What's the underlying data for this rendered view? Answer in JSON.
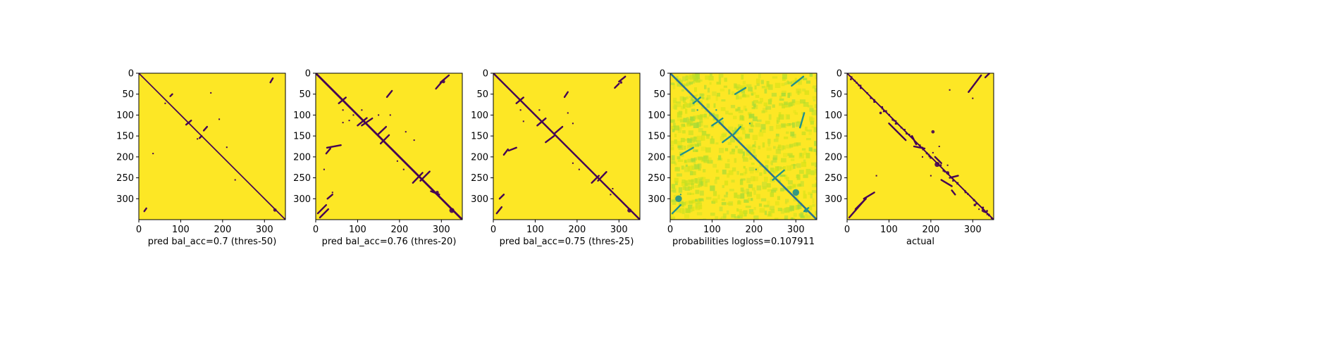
{
  "chart_data": [
    {
      "type": "heatmap",
      "title": "",
      "xlabel": "pred bal_acc=0.7 (thres-50)",
      "ylabel": "",
      "size": 350,
      "xlim": [
        0,
        350
      ],
      "ylim": [
        350,
        0
      ],
      "xticks": [
        0,
        100,
        200,
        300
      ],
      "yticks": [
        0,
        50,
        100,
        150,
        200,
        250,
        300
      ],
      "colormap": "binary",
      "background_color": "#fde725",
      "mark_color": "#440154",
      "diagonal": {
        "band": 1.4,
        "jitter": 0
      },
      "segments": [
        {
          "x1": 314,
          "y1": 22,
          "x2": 320,
          "y2": 12
        },
        {
          "x1": 75,
          "y1": 55,
          "x2": 80,
          "y2": 50
        },
        {
          "x1": 113,
          "y1": 123,
          "x2": 125,
          "y2": 113
        },
        {
          "x1": 155,
          "y1": 137,
          "x2": 163,
          "y2": 128
        },
        {
          "x1": 145,
          "y1": 155,
          "x2": 150,
          "y2": 150
        },
        {
          "x1": 13,
          "y1": 330,
          "x2": 18,
          "y2": 323
        }
      ],
      "dots": [
        [
          63,
          72
        ],
        [
          172,
          47
        ],
        [
          192,
          110
        ],
        [
          34,
          192
        ],
        [
          210,
          177
        ],
        [
          140,
          157
        ],
        [
          230,
          255
        ]
      ],
      "blobs": [
        {
          "x": 325,
          "y": 327,
          "r": 4
        }
      ]
    },
    {
      "type": "heatmap",
      "title": "",
      "xlabel": "pred bal_acc=0.76 (thres-20)",
      "ylabel": "",
      "size": 350,
      "xlim": [
        0,
        350
      ],
      "ylim": [
        350,
        0
      ],
      "xticks": [
        0,
        100,
        200,
        300
      ],
      "yticks": [
        0,
        50,
        100,
        150,
        200,
        250,
        300
      ],
      "colormap": "binary",
      "background_color": "#fde725",
      "mark_color": "#440154",
      "diagonal": {
        "band": 2.4,
        "jitter": 0
      },
      "segments": [
        {
          "x1": 55,
          "y1": 72,
          "x2": 72,
          "y2": 58
        },
        {
          "x1": 100,
          "y1": 125,
          "x2": 122,
          "y2": 107
        },
        {
          "x1": 110,
          "y1": 125,
          "x2": 135,
          "y2": 108
        },
        {
          "x1": 148,
          "y1": 147,
          "x2": 168,
          "y2": 128
        },
        {
          "x1": 155,
          "y1": 168,
          "x2": 175,
          "y2": 148
        },
        {
          "x1": 170,
          "y1": 57,
          "x2": 182,
          "y2": 42
        },
        {
          "x1": 287,
          "y1": 37,
          "x2": 300,
          "y2": 22
        },
        {
          "x1": 298,
          "y1": 22,
          "x2": 318,
          "y2": 5
        },
        {
          "x1": 250,
          "y1": 257,
          "x2": 272,
          "y2": 235
        },
        {
          "x1": 232,
          "y1": 262,
          "x2": 255,
          "y2": 238
        },
        {
          "x1": 275,
          "y1": 282,
          "x2": 295,
          "y2": 290
        },
        {
          "x1": 27,
          "y1": 178,
          "x2": 60,
          "y2": 172
        },
        {
          "x1": 25,
          "y1": 192,
          "x2": 35,
          "y2": 180
        },
        {
          "x1": 5,
          "y1": 335,
          "x2": 25,
          "y2": 315
        },
        {
          "x1": 10,
          "y1": 345,
          "x2": 30,
          "y2": 325
        },
        {
          "x1": 28,
          "y1": 300,
          "x2": 40,
          "y2": 290
        }
      ],
      "dots": [
        [
          65,
          88
        ],
        [
          90,
          100
        ],
        [
          150,
          100
        ],
        [
          110,
          88
        ],
        [
          80,
          113
        ],
        [
          65,
          118
        ],
        [
          178,
          100
        ],
        [
          20,
          230
        ],
        [
          215,
          140
        ],
        [
          235,
          160
        ],
        [
          210,
          230
        ],
        [
          195,
          210
        ],
        [
          40,
          285
        ]
      ],
      "blobs": [
        {
          "x": 325,
          "y": 328,
          "r": 6
        },
        {
          "x": 290,
          "y": 285,
          "r": 4
        },
        {
          "x": 305,
          "y": 20,
          "r": 4
        }
      ]
    },
    {
      "type": "heatmap",
      "title": "",
      "xlabel": "pred bal_acc=0.75 (thres-25)",
      "ylabel": "",
      "size": 350,
      "xlim": [
        0,
        350
      ],
      "ylim": [
        350,
        0
      ],
      "xticks": [
        0,
        100,
        200,
        300
      ],
      "yticks": [
        0,
        50,
        100,
        150,
        200,
        250,
        300
      ],
      "colormap": "binary",
      "background_color": "#fde725",
      "mark_color": "#440154",
      "diagonal": {
        "band": 2.0,
        "jitter": 0
      },
      "segments": [
        {
          "x1": 55,
          "y1": 72,
          "x2": 72,
          "y2": 58
        },
        {
          "x1": 105,
          "y1": 125,
          "x2": 125,
          "y2": 108
        },
        {
          "x1": 145,
          "y1": 145,
          "x2": 165,
          "y2": 128
        },
        {
          "x1": 125,
          "y1": 165,
          "x2": 145,
          "y2": 150
        },
        {
          "x1": 170,
          "y1": 57,
          "x2": 178,
          "y2": 45
        },
        {
          "x1": 290,
          "y1": 35,
          "x2": 300,
          "y2": 25
        },
        {
          "x1": 300,
          "y1": 20,
          "x2": 315,
          "y2": 8
        },
        {
          "x1": 250,
          "y1": 257,
          "x2": 270,
          "y2": 236
        },
        {
          "x1": 235,
          "y1": 262,
          "x2": 252,
          "y2": 245
        },
        {
          "x1": 25,
          "y1": 195,
          "x2": 35,
          "y2": 182
        },
        {
          "x1": 37,
          "y1": 185,
          "x2": 55,
          "y2": 178
        },
        {
          "x1": 8,
          "y1": 335,
          "x2": 20,
          "y2": 320
        },
        {
          "x1": 15,
          "y1": 300,
          "x2": 25,
          "y2": 290
        }
      ],
      "dots": [
        [
          65,
          88
        ],
        [
          110,
          88
        ],
        [
          190,
          120
        ],
        [
          72,
          115
        ],
        [
          178,
          95
        ],
        [
          205,
          230
        ],
        [
          190,
          215
        ],
        [
          25,
          290
        ],
        [
          285,
          276
        ],
        [
          280,
          290
        ]
      ],
      "blobs": [
        {
          "x": 325,
          "y": 328,
          "r": 5
        },
        {
          "x": 305,
          "y": 22,
          "r": 3
        }
      ]
    },
    {
      "type": "heatmap",
      "title": "",
      "xlabel": "probabilities logloss=0.107911",
      "ylabel": "",
      "size": 350,
      "xlim": [
        0,
        350
      ],
      "ylim": [
        350,
        0
      ],
      "xticks": [
        0,
        100,
        200,
        300
      ],
      "yticks": [
        0,
        50,
        100,
        150,
        200,
        250,
        300
      ],
      "colormap": "viridis",
      "background_color": "#fde725",
      "mark_color": "#21918c",
      "diagonal_color": "#2c728e",
      "diagonal": {
        "band": 2.2,
        "jitter": 0
      },
      "segments": [
        {
          "x1": 55,
          "y1": 72,
          "x2": 72,
          "y2": 58
        },
        {
          "x1": 100,
          "y1": 125,
          "x2": 125,
          "y2": 108
        },
        {
          "x1": 150,
          "y1": 148,
          "x2": 168,
          "y2": 128
        },
        {
          "x1": 125,
          "y1": 165,
          "x2": 145,
          "y2": 150
        },
        {
          "x1": 155,
          "y1": 50,
          "x2": 180,
          "y2": 35
        },
        {
          "x1": 290,
          "y1": 30,
          "x2": 318,
          "y2": 8
        },
        {
          "x1": 245,
          "y1": 255,
          "x2": 272,
          "y2": 232
        },
        {
          "x1": 25,
          "y1": 195,
          "x2": 55,
          "y2": 178
        },
        {
          "x1": 5,
          "y1": 335,
          "x2": 25,
          "y2": 315
        },
        {
          "x1": 310,
          "y1": 130,
          "x2": 320,
          "y2": 95
        },
        {
          "x1": 320,
          "y1": 330,
          "x2": 330,
          "y2": 322
        }
      ],
      "dots": [
        [
          65,
          88
        ],
        [
          110,
          88
        ],
        [
          190,
          120
        ],
        [
          205,
          230
        ],
        [
          25,
          290
        ]
      ],
      "blobs": [
        {
          "x": 300,
          "y": 285,
          "r": 8
        },
        {
          "x": 20,
          "y": 300,
          "r": 8
        },
        {
          "x": 325,
          "y": 328,
          "r": 5
        }
      ]
    },
    {
      "type": "heatmap",
      "title": "",
      "xlabel": "actual",
      "ylabel": "",
      "size": 350,
      "xlim": [
        0,
        350
      ],
      "ylim": [
        350,
        0
      ],
      "xticks": [
        0,
        100,
        200,
        300
      ],
      "yticks": [
        0,
        50,
        100,
        150,
        200,
        250,
        300
      ],
      "colormap": "binary",
      "background_color": "#fde725",
      "mark_color": "#440154",
      "diagonal": {
        "band": 1.6,
        "jitter": 3
      },
      "segments": [
        {
          "x1": 290,
          "y1": 45,
          "x2": 320,
          "y2": 5
        },
        {
          "x1": 330,
          "y1": 10,
          "x2": 340,
          "y2": 0
        },
        {
          "x1": 5,
          "y1": 345,
          "x2": 40,
          "y2": 305
        },
        {
          "x1": 20,
          "y1": 325,
          "x2": 45,
          "y2": 300
        },
        {
          "x1": 40,
          "y1": 300,
          "x2": 65,
          "y2": 285
        },
        {
          "x1": 100,
          "y1": 120,
          "x2": 125,
          "y2": 145
        },
        {
          "x1": 155,
          "y1": 150,
          "x2": 165,
          "y2": 170
        },
        {
          "x1": 160,
          "y1": 175,
          "x2": 185,
          "y2": 180
        },
        {
          "x1": 210,
          "y1": 200,
          "x2": 225,
          "y2": 215
        },
        {
          "x1": 245,
          "y1": 250,
          "x2": 265,
          "y2": 245
        },
        {
          "x1": 225,
          "y1": 255,
          "x2": 250,
          "y2": 270
        },
        {
          "x1": 250,
          "y1": 280,
          "x2": 258,
          "y2": 290
        },
        {
          "x1": 125,
          "y1": 145,
          "x2": 140,
          "y2": 160
        }
      ],
      "dots": [
        [
          245,
          40
        ],
        [
          70,
          245
        ],
        [
          300,
          60
        ],
        [
          220,
          175
        ],
        [
          205,
          190
        ],
        [
          240,
          220
        ],
        [
          315,
          325
        ],
        [
          200,
          245
        ],
        [
          180,
          200
        ]
      ],
      "blobs": [
        {
          "x": 215,
          "y": 218,
          "r": 6
        },
        {
          "x": 205,
          "y": 140,
          "r": 4
        },
        {
          "x": 80,
          "y": 95,
          "r": 3
        },
        {
          "x": 325,
          "y": 328,
          "r": 4
        },
        {
          "x": 240,
          "y": 238,
          "r": 4
        },
        {
          "x": 305,
          "y": 315,
          "r": 3
        }
      ]
    }
  ]
}
